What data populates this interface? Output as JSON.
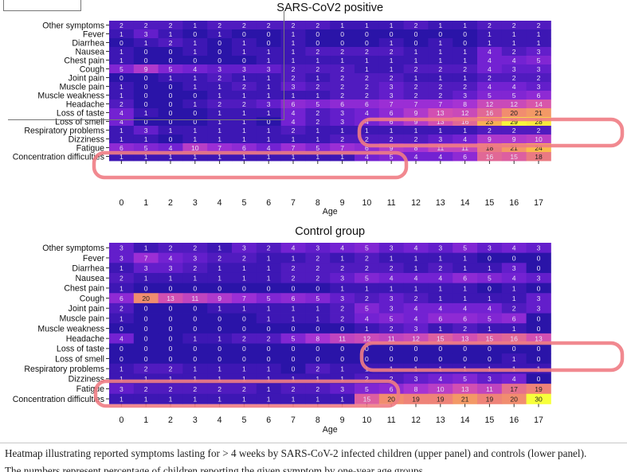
{
  "chart_data": [
    {
      "type": "heatmap",
      "title": "SARS-CoV2 positive",
      "xlabel": "Age",
      "ylabel": "",
      "x": [
        "0",
        "1",
        "2",
        "3",
        "4",
        "5",
        "6",
        "7",
        "8",
        "9",
        "10",
        "11",
        "12",
        "13",
        "14",
        "15",
        "16",
        "17"
      ],
      "y": [
        "Other symptoms",
        "Fever",
        "Diarrhea",
        "Nausea",
        "Chest pain",
        "Cough",
        "Joint pain",
        "Muscle pain",
        "Muscle weakness",
        "Headache",
        "Loss of taste",
        "Loss of smell",
        "Respiratory problems",
        "Dizziness",
        "Fatigue",
        "Concentration difficulties"
      ],
      "values": [
        [
          2,
          2,
          2,
          1,
          2,
          2,
          2,
          2,
          2,
          1,
          1,
          1,
          2,
          1,
          1,
          2,
          2,
          2
        ],
        [
          1,
          3,
          1,
          0,
          1,
          0,
          0,
          1,
          0,
          0,
          0,
          0,
          0,
          0,
          0,
          1,
          1,
          1
        ],
        [
          0,
          1,
          2,
          1,
          0,
          1,
          0,
          1,
          0,
          0,
          0,
          1,
          0,
          1,
          0,
          1,
          1,
          1
        ],
        [
          1,
          0,
          0,
          1,
          0,
          1,
          1,
          1,
          2,
          2,
          2,
          2,
          1,
          1,
          1,
          4,
          2,
          3
        ],
        [
          1,
          0,
          0,
          0,
          0,
          0,
          1,
          1,
          1,
          1,
          1,
          1,
          1,
          1,
          1,
          4,
          4,
          5
        ],
        [
          5,
          9,
          5,
          4,
          3,
          3,
          3,
          2,
          2,
          2,
          1,
          1,
          2,
          2,
          2,
          4,
          3,
          3
        ],
        [
          0,
          0,
          1,
          1,
          2,
          1,
          1,
          2,
          1,
          2,
          2,
          2,
          1,
          1,
          1,
          2,
          2,
          2
        ],
        [
          1,
          0,
          0,
          1,
          1,
          2,
          1,
          3,
          2,
          2,
          2,
          3,
          2,
          2,
          2,
          4,
          4,
          3
        ],
        [
          1,
          0,
          0,
          0,
          1,
          1,
          1,
          1,
          1,
          2,
          2,
          3,
          2,
          2,
          3,
          5,
          5,
          6
        ],
        [
          2,
          0,
          0,
          1,
          2,
          2,
          3,
          6,
          5,
          6,
          6,
          7,
          7,
          7,
          8,
          12,
          12,
          14
        ],
        [
          4,
          1,
          0,
          0,
          1,
          1,
          1,
          4,
          2,
          3,
          4,
          6,
          9,
          13,
          12,
          16,
          20,
          21
        ],
        [
          4,
          0,
          0,
          0,
          1,
          1,
          0,
          4,
          2,
          3,
          4,
          6,
          9,
          13,
          16,
          23,
          29,
          28
        ],
        [
          1,
          3,
          1,
          1,
          1,
          1,
          1,
          2,
          1,
          1,
          1,
          1,
          1,
          1,
          1,
          2,
          2,
          2
        ],
        [
          1,
          1,
          0,
          1,
          1,
          1,
          1,
          1,
          1,
          2,
          2,
          2,
          2,
          3,
          4,
          9,
          9,
          10
        ],
        [
          6,
          5,
          4,
          10,
          7,
          6,
          4,
          7,
          5,
          7,
          6,
          9,
          8,
          11,
          11,
          18,
          21,
          24
        ],
        [
          1,
          1,
          1,
          1,
          1,
          1,
          1,
          1,
          1,
          1,
          4,
          5,
          4,
          4,
          6,
          16,
          15,
          18
        ]
      ]
    },
    {
      "type": "heatmap",
      "title": "Control group",
      "xlabel": "Age",
      "ylabel": "",
      "x": [
        "0",
        "1",
        "2",
        "3",
        "4",
        "5",
        "6",
        "7",
        "8",
        "9",
        "10",
        "11",
        "12",
        "13",
        "14",
        "15",
        "16",
        "17"
      ],
      "y": [
        "Other symptoms",
        "Fever",
        "Diarrhea",
        "Nausea",
        "Chest pain",
        "Cough",
        "Joint pain",
        "Muscle pain",
        "Muscle weakness",
        "Headache",
        "Loss of taste",
        "Loss of smell",
        "Respiratory problems",
        "Dizziness",
        "Fatigue",
        "Concentration difficulties"
      ],
      "values": [
        [
          3,
          1,
          2,
          2,
          1,
          3,
          2,
          4,
          3,
          4,
          5,
          3,
          4,
          3,
          5,
          3,
          4,
          3
        ],
        [
          3,
          7,
          4,
          3,
          2,
          2,
          1,
          1,
          2,
          1,
          2,
          1,
          1,
          1,
          1,
          0,
          0,
          0
        ],
        [
          1,
          3,
          3,
          2,
          1,
          1,
          1,
          2,
          2,
          2,
          2,
          2,
          1,
          2,
          1,
          1,
          3,
          0
        ],
        [
          2,
          1,
          1,
          1,
          1,
          1,
          1,
          2,
          2,
          3,
          5,
          4,
          4,
          4,
          6,
          5,
          4,
          3
        ],
        [
          1,
          0,
          0,
          0,
          0,
          0,
          0,
          0,
          0,
          1,
          1,
          1,
          1,
          1,
          1,
          0,
          1,
          0
        ],
        [
          6,
          20,
          13,
          11,
          9,
          7,
          5,
          6,
          5,
          3,
          2,
          3,
          2,
          1,
          1,
          1,
          1,
          3
        ],
        [
          2,
          0,
          0,
          0,
          1,
          1,
          1,
          1,
          1,
          2,
          5,
          3,
          4,
          4,
          4,
          4,
          2,
          3
        ],
        [
          1,
          0,
          0,
          0,
          0,
          0,
          1,
          1,
          1,
          2,
          4,
          5,
          4,
          6,
          6,
          5,
          6,
          0
        ],
        [
          0,
          0,
          0,
          0,
          0,
          0,
          0,
          0,
          0,
          0,
          1,
          2,
          3,
          1,
          2,
          1,
          1,
          0
        ],
        [
          4,
          0,
          0,
          1,
          1,
          2,
          2,
          5,
          8,
          11,
          12,
          11,
          12,
          15,
          13,
          15,
          16,
          13
        ],
        [
          0,
          0,
          0,
          0,
          0,
          0,
          0,
          0,
          0,
          0,
          0,
          0,
          0,
          0,
          0,
          0,
          0,
          0
        ],
        [
          0,
          0,
          0,
          0,
          0,
          0,
          0,
          0,
          0,
          0,
          0,
          0,
          0,
          0,
          0,
          0,
          1,
          0
        ],
        [
          1,
          2,
          2,
          1,
          1,
          1,
          1,
          0,
          2,
          1,
          1,
          1,
          1,
          1,
          1,
          1,
          1,
          1
        ],
        [
          1,
          1,
          1,
          1,
          1,
          1,
          1,
          1,
          1,
          1,
          2,
          2,
          3,
          4,
          5,
          3,
          4,
          0
        ],
        [
          3,
          2,
          2,
          2,
          2,
          2,
          1,
          2,
          2,
          3,
          5,
          6,
          8,
          10,
          13,
          11,
          17,
          19
        ],
        [
          1,
          1,
          1,
          1,
          1,
          1,
          1,
          1,
          1,
          1,
          15,
          20,
          19,
          19,
          21,
          19,
          20,
          30
        ]
      ]
    }
  ],
  "caption": {
    "line1": "Heatmap illustrating reported symptoms lasting for > 4 weeks by SARS-CoV-2 infected children (upper panel) and controls (lower panel).",
    "line2": "The numbers represent percentage of children reporting the given symptom by one-year age groups"
  },
  "colors": {
    "scale_low": "#2b16a8",
    "scale_high": "#f7ff3a",
    "highlight": "#f07c84"
  }
}
